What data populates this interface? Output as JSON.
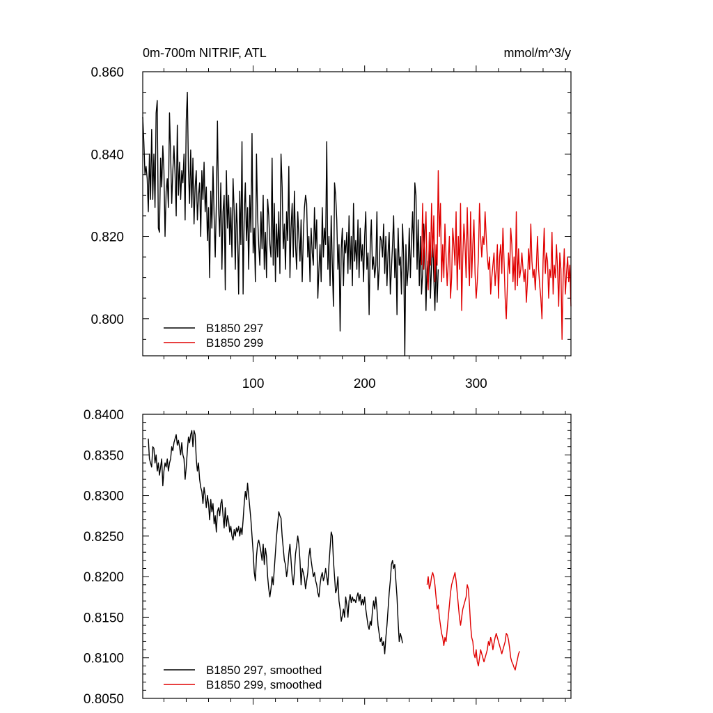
{
  "chart_data": [
    {
      "type": "line",
      "title": "0m-700m NITRIF, ATL",
      "units": "mmol/m^3/y",
      "xlim": [
        1,
        385
      ],
      "ylim": [
        0.791,
        0.86
      ],
      "x_ticks": [
        100,
        200,
        300
      ],
      "y_ticks": [
        0.8,
        0.82,
        0.84,
        0.86
      ],
      "y_tick_labels": [
        "0.800",
        "0.820",
        "0.840",
        "0.860"
      ],
      "x_tick_labels": [
        "100",
        "200",
        "300"
      ],
      "legend": {
        "placement": "bottom-left",
        "entries": [
          "B1850 297",
          "B1850 299"
        ]
      },
      "series": [
        {
          "name": "B1850 297",
          "color": "#000000",
          "x_start": 1,
          "values": [
            0.849,
            0.843,
            0.835,
            0.837,
            0.834,
            0.826,
            0.84,
            0.829,
            0.846,
            0.829,
            0.84,
            0.827,
            0.85,
            0.853,
            0.822,
            0.821,
            0.839,
            0.832,
            0.842,
            0.836,
            0.82,
            0.831,
            0.834,
            0.827,
            0.85,
            0.84,
            0.828,
            0.836,
            0.842,
            0.835,
            0.825,
            0.847,
            0.83,
            0.838,
            0.829,
            0.836,
            0.833,
            0.84,
            0.824,
            0.848,
            0.855,
            0.836,
            0.828,
            0.841,
            0.827,
            0.839,
            0.823,
            0.832,
            0.836,
            0.824,
            0.83,
            0.833,
            0.82,
            0.836,
            0.829,
            0.838,
            0.826,
            0.832,
            0.819,
            0.827,
            0.81,
            0.831,
            0.822,
            0.837,
            0.825,
            0.815,
            0.828,
            0.848,
            0.827,
            0.82,
            0.833,
            0.812,
            0.826,
            0.83,
            0.807,
            0.836,
            0.822,
            0.83,
            0.818,
            0.827,
            0.815,
            0.834,
            0.826,
            0.812,
            0.828,
            0.821,
            0.806,
            0.831,
            0.818,
            0.843,
            0.806,
            0.825,
            0.833,
            0.819,
            0.827,
            0.812,
            0.83,
            0.821,
            0.845,
            0.816,
            0.822,
            0.809,
            0.84,
            0.825,
            0.818,
            0.813,
            0.826,
            0.817,
            0.83,
            0.812,
            0.821,
            0.81,
            0.829,
            0.825,
            0.818,
            0.815,
            0.839,
            0.813,
            0.828,
            0.809,
            0.823,
            0.815,
            0.826,
            0.811,
            0.84,
            0.832,
            0.817,
            0.823,
            0.812,
            0.826,
            0.819,
            0.837,
            0.81,
            0.822,
            0.828,
            0.815,
            0.831,
            0.818,
            0.812,
            0.826,
            0.82,
            0.814,
            0.824,
            0.809,
            0.82,
            0.827,
            0.83,
            0.828,
            0.815,
            0.82,
            0.809,
            0.822,
            0.816,
            0.813,
            0.827,
            0.817,
            0.824,
            0.805,
            0.812,
            0.818,
            0.809,
            0.827,
            0.815,
            0.822,
            0.818,
            0.843,
            0.812,
            0.82,
            0.808,
            0.825,
            0.813,
            0.803,
            0.833,
            0.83,
            0.824,
            0.812,
            0.818,
            0.797,
            0.817,
            0.822,
            0.808,
            0.819,
            0.816,
            0.821,
            0.811,
            0.825,
            0.812,
            0.82,
            0.808,
            0.828,
            0.814,
            0.819,
            0.812,
            0.824,
            0.81,
            0.822,
            0.814,
            0.818,
            0.809,
            0.82,
            0.826,
            0.812,
            0.816,
            0.801,
            0.818,
            0.824,
            0.812,
            0.815,
            0.81,
            0.813,
            0.826,
            0.807,
            0.812,
            0.82,
            0.819,
            0.815,
            0.823,
            0.811,
            0.82,
            0.808,
            0.816,
            0.821,
            0.806,
            0.812,
            0.818,
            0.825,
            0.81,
            0.817,
            0.801,
            0.822,
            0.813,
            0.815,
            0.806,
            0.823,
            0.815,
            0.791,
            0.818,
            0.808,
            0.812,
            0.822,
            0.81,
            0.819,
            0.826,
            0.815,
            0.833,
            0.83,
            0.812,
            0.824,
            0.808,
            0.82,
            0.806,
            0.811,
            0.823,
            0.816,
            0.802,
            0.814,
            0.809,
            0.819,
            0.805,
            0.813,
            0.82,
            0.81,
            0.802,
            0.815,
            0.804,
            0.812
          ]
        },
        {
          "name": "B1850 299",
          "color": "#e00000",
          "x_start": 251,
          "values": [
            0.813,
            0.828,
            0.812,
            0.82,
            0.826,
            0.811,
            0.807,
            0.821,
            0.813,
            0.828,
            0.815,
            0.825,
            0.809,
            0.818,
            0.813,
            0.836,
            0.82,
            0.828,
            0.809,
            0.818,
            0.81,
            0.823,
            0.815,
            0.808,
            0.814,
            0.82,
            0.805,
            0.81,
            0.822,
            0.818,
            0.813,
            0.826,
            0.807,
            0.82,
            0.812,
            0.828,
            0.802,
            0.815,
            0.823,
            0.818,
            0.81,
            0.827,
            0.815,
            0.808,
            0.826,
            0.81,
            0.818,
            0.824,
            0.811,
            0.805,
            0.809,
            0.815,
            0.828,
            0.82,
            0.815,
            0.82,
            0.818,
            0.826,
            0.82,
            0.815,
            0.812,
            0.815,
            0.806,
            0.81,
            0.813,
            0.816,
            0.808,
            0.812,
            0.818,
            0.805,
            0.815,
            0.818,
            0.811,
            0.822,
            0.814,
            0.805,
            0.8,
            0.808,
            0.816,
            0.811,
            0.822,
            0.818,
            0.809,
            0.815,
            0.807,
            0.826,
            0.808,
            0.817,
            0.81,
            0.812,
            0.816,
            0.812,
            0.809,
            0.812,
            0.804,
            0.809,
            0.817,
            0.812,
            0.823,
            0.814,
            0.81,
            0.812,
            0.807,
            0.813,
            0.82,
            0.812,
            0.808,
            0.805,
            0.8,
            0.814,
            0.822,
            0.811,
            0.816,
            0.814,
            0.805,
            0.812,
            0.81,
            0.821,
            0.806,
            0.813,
            0.81,
            0.818,
            0.812,
            0.803,
            0.816,
            0.812,
            0.795,
            0.81,
            0.817,
            0.806,
            0.811,
            0.815,
            0.809,
            0.813,
            0.803
          ]
        }
      ]
    },
    {
      "type": "line",
      "title": "",
      "xlim": [
        1,
        385
      ],
      "ylim": [
        0.805,
        0.84
      ],
      "y_ticks": [
        0.805,
        0.81,
        0.815,
        0.82,
        0.825,
        0.83,
        0.835,
        0.84
      ],
      "y_tick_labels": [
        "0.8050",
        "0.8100",
        "0.8150",
        "0.8200",
        "0.8250",
        "0.8300",
        "0.8350",
        "0.8400"
      ],
      "x_ticks": [
        100,
        200,
        300
      ],
      "legend": {
        "placement": "bottom-left",
        "entries": [
          "B1850 297, smoothed",
          "B1850 299, smoothed"
        ]
      },
      "series": [
        {
          "name": "B1850 297, smoothed",
          "color": "#000000",
          "x_start": 6,
          "values": [
            0.837,
            0.8345,
            0.834,
            0.8335,
            0.836,
            0.8358,
            0.834,
            0.835,
            0.833,
            0.834,
            0.8325,
            0.8335,
            0.8345,
            0.8312,
            0.833,
            0.834,
            0.8335,
            0.8345,
            0.833,
            0.834,
            0.8345,
            0.836,
            0.8355,
            0.8365,
            0.837,
            0.8375,
            0.8362,
            0.8368,
            0.836,
            0.835,
            0.8365,
            0.835,
            0.8345,
            0.832,
            0.8335,
            0.8355,
            0.8372,
            0.8365,
            0.8375,
            0.838,
            0.836,
            0.838,
            0.8375,
            0.8345,
            0.833,
            0.834,
            0.832,
            0.831,
            0.8305,
            0.829,
            0.831,
            0.83,
            0.8285,
            0.83,
            0.829,
            0.827,
            0.8295,
            0.828,
            0.829,
            0.8265,
            0.8275,
            0.8255,
            0.828,
            0.8285,
            0.8275,
            0.829,
            0.8295,
            0.8275,
            0.826,
            0.8285,
            0.8262,
            0.8275,
            0.8268,
            0.8255,
            0.8262,
            0.825,
            0.8245,
            0.8258,
            0.825,
            0.826,
            0.8255,
            0.8262,
            0.825,
            0.826,
            0.8252,
            0.827,
            0.829,
            0.8305,
            0.8295,
            0.8315,
            0.83,
            0.8285,
            0.827,
            0.825,
            0.823,
            0.8205,
            0.8195,
            0.8225,
            0.824,
            0.8245,
            0.8238,
            0.823,
            0.822,
            0.824,
            0.8215,
            0.8235,
            0.8225,
            0.82,
            0.8185,
            0.8175,
            0.8185,
            0.82,
            0.819,
            0.821,
            0.823,
            0.825,
            0.8265,
            0.828,
            0.8275,
            0.8272,
            0.825,
            0.8235,
            0.822,
            0.8215,
            0.82,
            0.821,
            0.8228,
            0.824,
            0.822,
            0.82,
            0.819,
            0.8205,
            0.8228,
            0.8238,
            0.825,
            0.824,
            0.822,
            0.819,
            0.821,
            0.8205,
            0.8198,
            0.8185,
            0.8195,
            0.8205,
            0.8225,
            0.8235,
            0.822,
            0.821,
            0.82,
            0.8205,
            0.8195,
            0.819,
            0.818,
            0.8175,
            0.819,
            0.82,
            0.8205,
            0.8195,
            0.82,
            0.821,
            0.82,
            0.819,
            0.8215,
            0.8235,
            0.8255,
            0.825,
            0.822,
            0.82,
            0.818,
            0.8185,
            0.82,
            0.817,
            0.816,
            0.8145,
            0.8152,
            0.816,
            0.815,
            0.8175,
            0.8165,
            0.815,
            0.817,
            0.8178,
            0.8168,
            0.8175,
            0.817,
            0.8172,
            0.8168,
            0.8175,
            0.818,
            0.817,
            0.8178,
            0.8165,
            0.8172,
            0.8165,
            0.8175,
            0.816,
            0.815,
            0.814,
            0.8135,
            0.8145,
            0.814,
            0.8158,
            0.817,
            0.816,
            0.8175,
            0.816,
            0.814,
            0.813,
            0.812,
            0.8125,
            0.8115,
            0.812,
            0.8105,
            0.8125,
            0.814,
            0.816,
            0.818,
            0.8195,
            0.8215,
            0.822,
            0.821,
            0.8215,
            0.8195,
            0.8175,
            0.8145,
            0.812,
            0.813,
            0.8125,
            0.8118
          ]
        },
        {
          "name": "B1850 299, smoothed",
          "color": "#e00000",
          "x_start": 256,
          "values": [
            0.819,
            0.82,
            0.8185,
            0.819,
            0.82,
            0.8205,
            0.82,
            0.819,
            0.8175,
            0.816,
            0.8165,
            0.815,
            0.814,
            0.813,
            0.8125,
            0.8115,
            0.8125,
            0.812,
            0.8135,
            0.815,
            0.8165,
            0.818,
            0.819,
            0.8195,
            0.82,
            0.8205,
            0.8195,
            0.818,
            0.8165,
            0.815,
            0.814,
            0.815,
            0.816,
            0.8165,
            0.817,
            0.8175,
            0.819,
            0.8185,
            0.8165,
            0.814,
            0.8125,
            0.812,
            0.8105,
            0.81,
            0.811,
            0.8095,
            0.809,
            0.81,
            0.811,
            0.8105,
            0.81,
            0.8095,
            0.81,
            0.8105,
            0.811,
            0.812,
            0.8115,
            0.8125,
            0.812,
            0.811,
            0.8118,
            0.8125,
            0.813,
            0.8125,
            0.812,
            0.8115,
            0.811,
            0.8105,
            0.811,
            0.8115,
            0.812,
            0.813,
            0.8128,
            0.8122,
            0.8112,
            0.81,
            0.8095,
            0.8092,
            0.8088,
            0.8085,
            0.8092,
            0.8098,
            0.8105,
            0.8108
          ]
        }
      ]
    }
  ]
}
